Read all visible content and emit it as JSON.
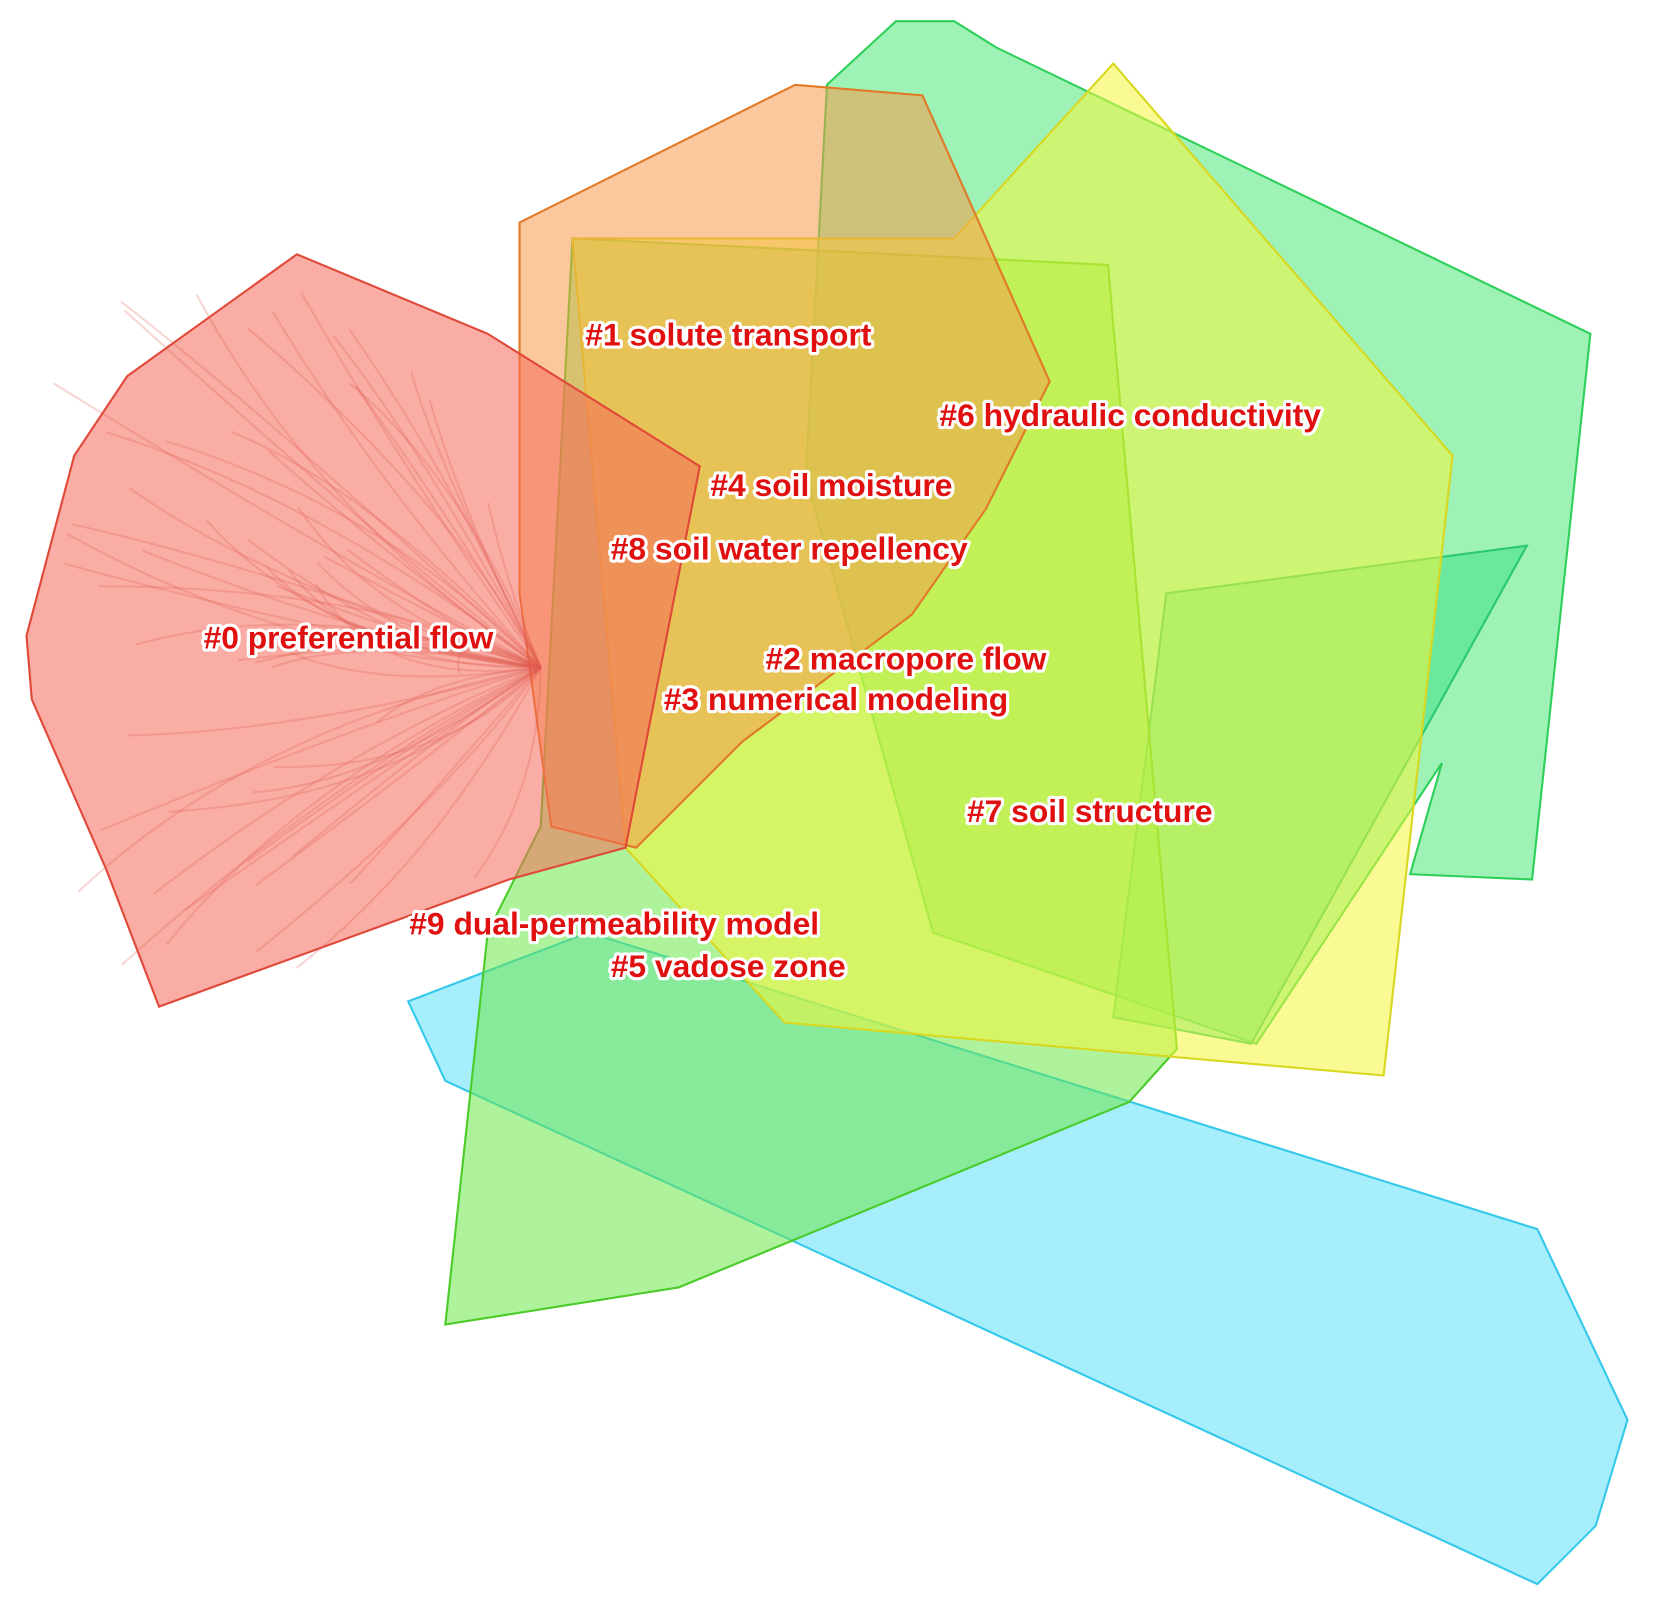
{
  "clusters": [
    {
      "label": "#0 preferential flow"
    },
    {
      "label": "#1 solute transport"
    },
    {
      "label": "#2 macropore flow"
    },
    {
      "label": "#3 numerical modeling"
    },
    {
      "label": "#4 soil moisture"
    },
    {
      "label": "#5 vadose zone"
    },
    {
      "label": "#6 hydraulic conductivity"
    },
    {
      "label": "#7 soil structure"
    },
    {
      "label": "#8 soil water repellency"
    },
    {
      "label": "#9 dual-permeability model"
    }
  ]
}
